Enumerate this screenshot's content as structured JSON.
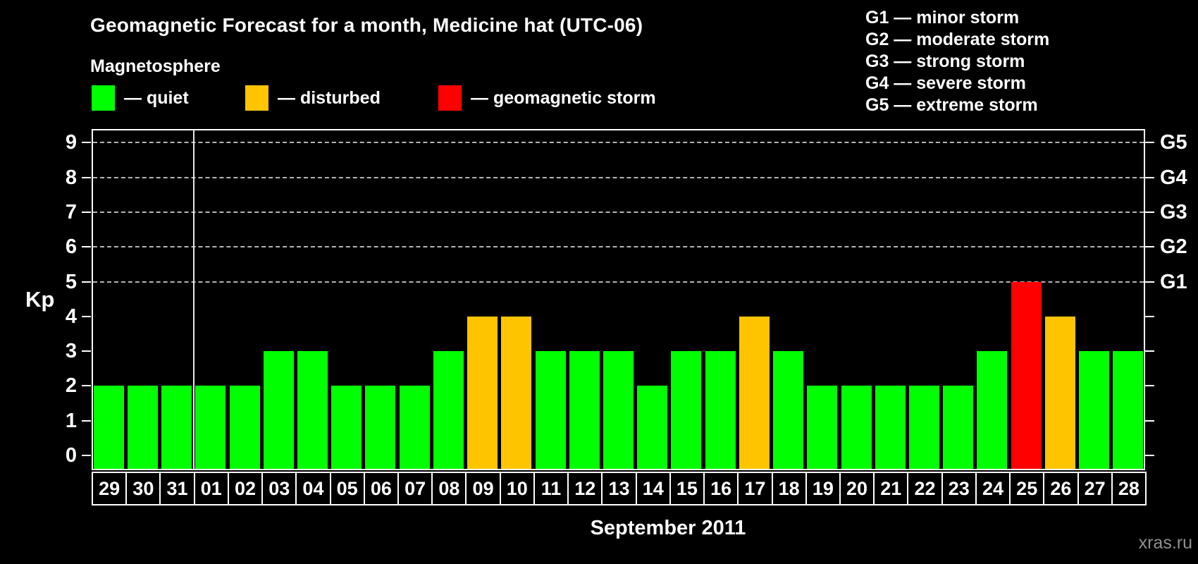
{
  "header": {
    "title": "Geomagnetic Forecast for a month, Medicine hat (UTC-06)"
  },
  "legend": {
    "title": "Magnetosphere",
    "items": [
      {
        "key": "quiet",
        "label": "— quiet"
      },
      {
        "key": "disturbed",
        "label": "— disturbed"
      },
      {
        "key": "storm",
        "label": "— geomagnetic storm"
      }
    ]
  },
  "g_legend": [
    "G1 — minor storm",
    "G2 — moderate storm",
    "G3 — strong storm",
    "G4 — severe storm",
    "G5 — extreme storm"
  ],
  "palette": {
    "quiet": "#00ff00",
    "disturbed": "#ffc400",
    "storm": "#ff0000",
    "grid": "#b4b4b4",
    "axis": "#ffffff",
    "watermark": "#8f8f8f"
  },
  "watermark": "xras.ru",
  "chart_data": {
    "type": "bar",
    "title": "Geomagnetic Forecast for a month, Medicine hat (UTC-06)",
    "subtitle": "Magnetosphere",
    "xlabel": "September 2011",
    "ylabel": "Kp",
    "ylim": [
      0,
      9
    ],
    "yticks": [
      0,
      1,
      2,
      3,
      4,
      5,
      6,
      7,
      8,
      9
    ],
    "categories": [
      "29",
      "30",
      "31",
      "01",
      "02",
      "03",
      "04",
      "05",
      "06",
      "07",
      "08",
      "09",
      "10",
      "11",
      "12",
      "13",
      "14",
      "15",
      "16",
      "17",
      "18",
      "19",
      "20",
      "21",
      "22",
      "23",
      "24",
      "25",
      "26",
      "27",
      "28"
    ],
    "values": [
      2,
      2,
      2,
      2,
      2,
      3,
      3,
      2,
      2,
      2,
      3,
      4,
      4,
      3,
      3,
      3,
      2,
      3,
      3,
      4,
      3,
      2,
      2,
      2,
      2,
      2,
      3,
      5,
      4,
      3,
      3
    ],
    "color_rule": {
      "quiet_max_kp": 3,
      "disturbed_kp": 4,
      "storm_min_kp": 5
    },
    "right_axis": [
      {
        "kp": 5,
        "label": "G1"
      },
      {
        "kp": 6,
        "label": "G2"
      },
      {
        "kp": 7,
        "label": "G3"
      },
      {
        "kp": 8,
        "label": "G4"
      },
      {
        "kp": 9,
        "label": "G5"
      }
    ],
    "gridlines_at_kp": [
      5,
      6,
      7,
      8,
      9
    ],
    "grid": "dashed-horizontal",
    "month_separator_after_index": 2,
    "legend_position": "top-left"
  }
}
